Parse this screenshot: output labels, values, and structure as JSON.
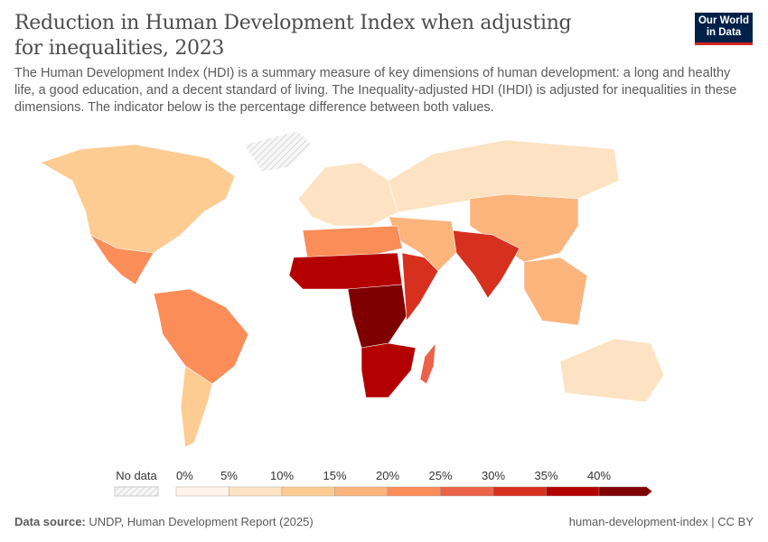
{
  "header": {
    "title": "Reduction in Human Development Index when adjusting for inequalities, 2023",
    "subtitle": "The Human Development Index (HDI) is a summary measure of key dimensions of human development: a long and healthy life, a good education, and a decent standard of living. The Inequality-adjusted HDI (IHDI) is adjusted for inequalities in these dimensions. The indicator below is the percentage difference between both values.",
    "logo": "Our World in Data"
  },
  "chart_data": {
    "type": "choropleth map",
    "title": "Reduction in Human Development Index when adjusting for inequalities, 2023",
    "legend": {
      "no_data_label": "No data",
      "tick_labels": [
        "0%",
        "5%",
        "10%",
        "15%",
        "20%",
        "25%",
        "30%",
        "35%",
        "40%"
      ],
      "bins": [
        [
          0,
          5
        ],
        [
          5,
          10
        ],
        [
          10,
          15
        ],
        [
          15,
          20
        ],
        [
          20,
          25
        ],
        [
          25,
          30
        ],
        [
          30,
          35
        ],
        [
          35,
          40
        ],
        [
          40,
          null
        ]
      ],
      "colors": [
        "#fef4ea",
        "#fde3c3",
        "#fdcc92",
        "#fcb47d",
        "#fb8d59",
        "#ec6249",
        "#d7301f",
        "#b30000",
        "#7f0000"
      ],
      "no_data_color": "#f0f0f0"
    },
    "regions": [
      {
        "name": "North America (Canada, USA)",
        "bin": 2
      },
      {
        "name": "Mexico / Central America",
        "bin": 4
      },
      {
        "name": "South America",
        "bin": 4
      },
      {
        "name": "Southern Cone",
        "bin": 2
      },
      {
        "name": "Europe",
        "bin": 1
      },
      {
        "name": "Russia",
        "bin": 1
      },
      {
        "name": "China / East Asia",
        "bin": 3
      },
      {
        "name": "South Asia",
        "bin": 6
      },
      {
        "name": "Middle East",
        "bin": 3
      },
      {
        "name": "North Africa",
        "bin": 4
      },
      {
        "name": "Sahel / West Africa",
        "bin": 7
      },
      {
        "name": "Central Africa",
        "bin": 8
      },
      {
        "name": "East Africa",
        "bin": 6
      },
      {
        "name": "Southern Africa",
        "bin": 7
      },
      {
        "name": "Madagascar",
        "bin": 5
      },
      {
        "name": "Southeast Asia",
        "bin": 3
      },
      {
        "name": "Australia",
        "bin": 1
      },
      {
        "name": "Greenland",
        "bin": null
      }
    ]
  },
  "footer": {
    "source_label": "Data source:",
    "source": "UNDP, Human Development Report (2025)",
    "right": "human-development-index | CC BY"
  }
}
